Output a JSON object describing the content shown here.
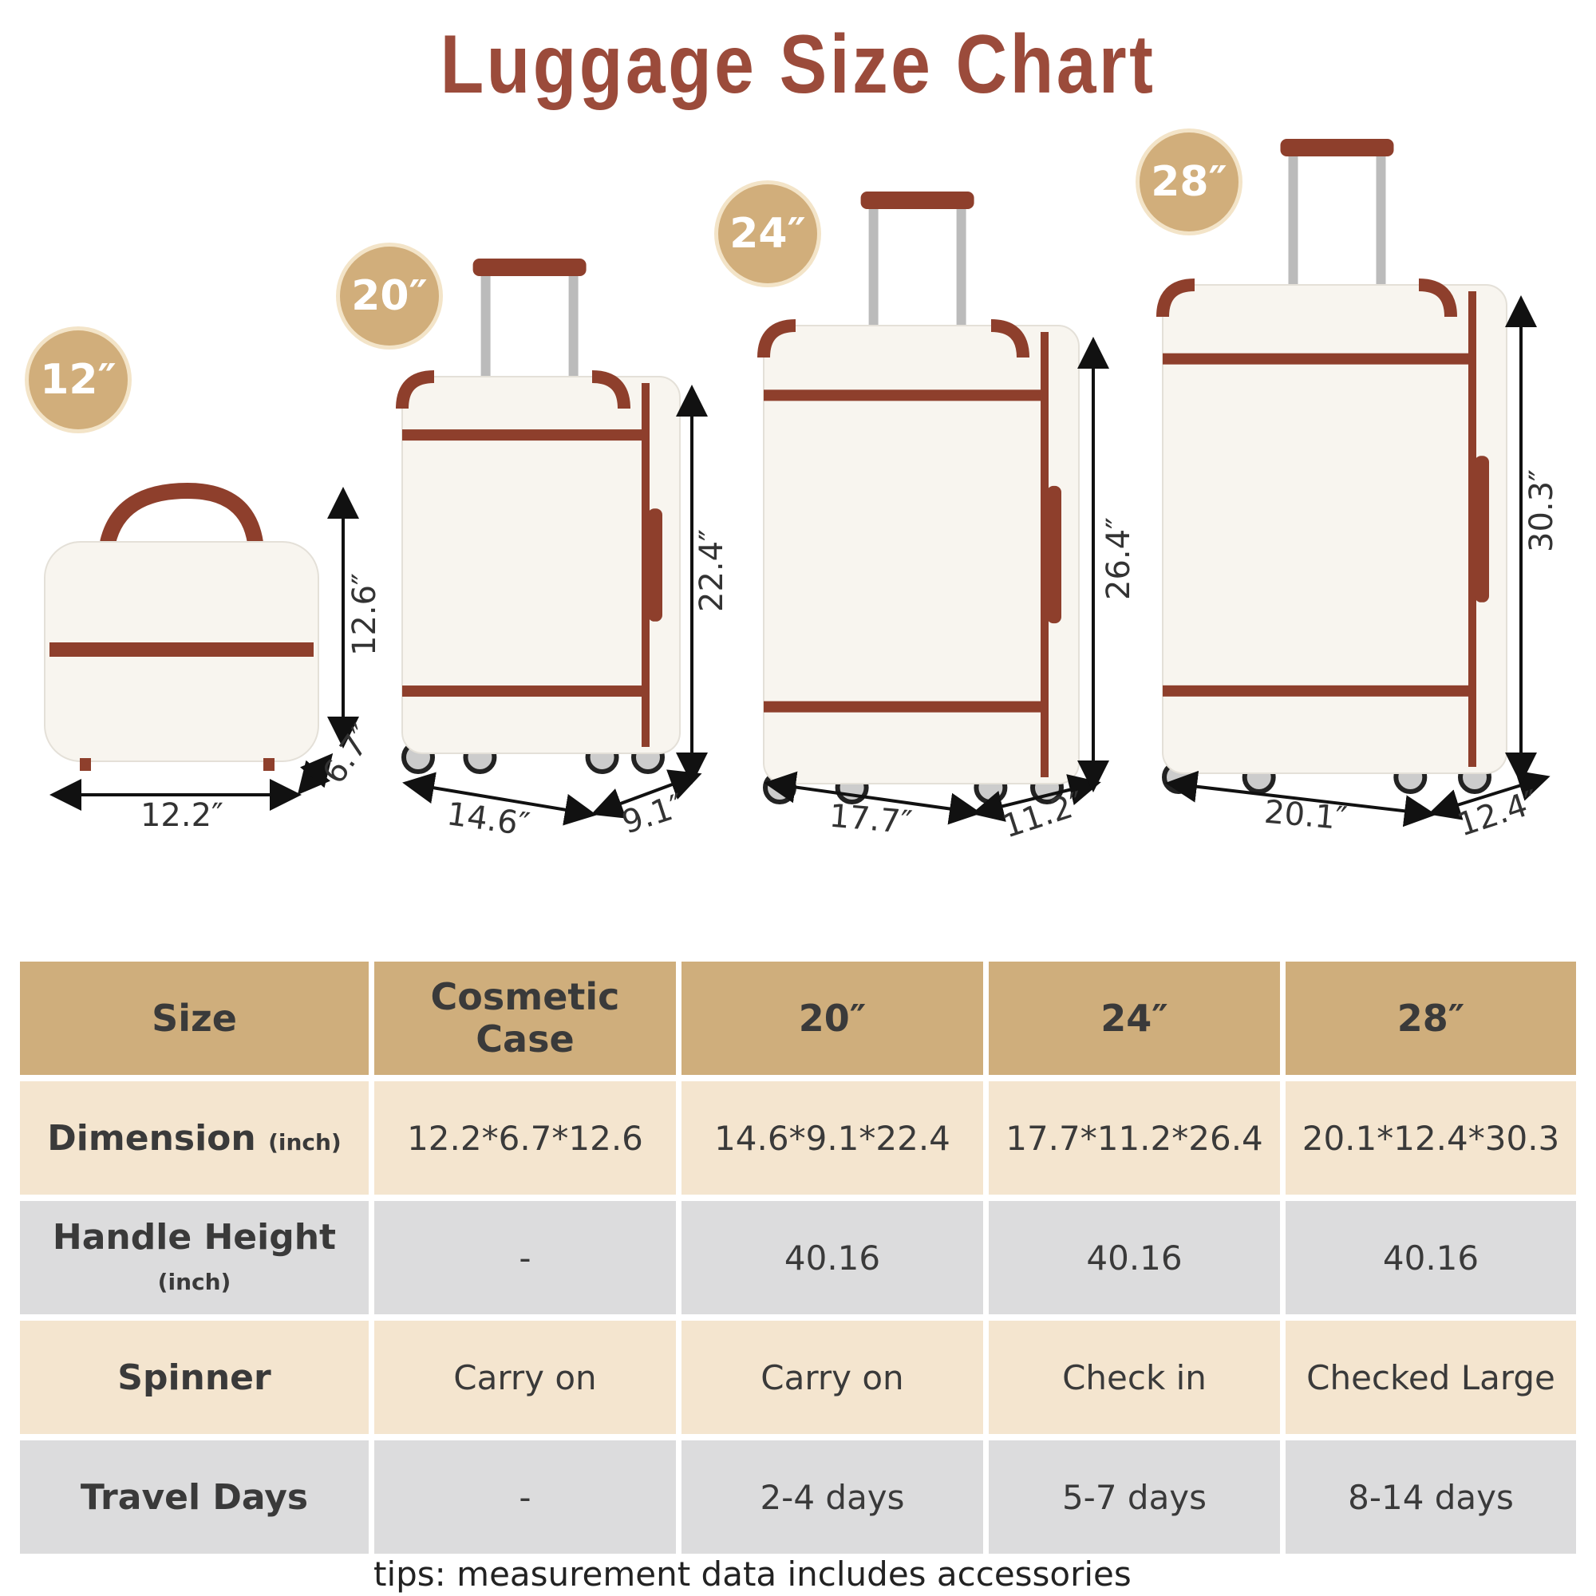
{
  "title": "Luggage Size Chart",
  "badges": [
    "12″",
    "20″",
    "24″",
    "28″"
  ],
  "dimension_labels": {
    "cosmetic": {
      "width": "12.2″",
      "depth": "6.7″",
      "height": "12.6″"
    },
    "s20": {
      "width": "14.6″",
      "depth": "9.1″",
      "height": "22.4″"
    },
    "s24": {
      "width": "17.7″",
      "depth": "11.2″",
      "height": "26.4″"
    },
    "s28": {
      "width": "20.1″",
      "depth": "12.4″",
      "height": "30.3″"
    }
  },
  "table": {
    "header": [
      "Size",
      "Cosmetic Case",
      "20″",
      "24″",
      "28″"
    ],
    "rows": [
      {
        "label": "Dimension",
        "unit": "(inch)",
        "cells": [
          "12.2*6.7*12.6",
          "14.6*9.1*22.4",
          "17.7*11.2*26.4",
          "20.1*12.4*30.3"
        ]
      },
      {
        "label": "Handle Height",
        "unit": "(inch)",
        "cells": [
          "-",
          "40.16",
          "40.16",
          "40.16"
        ]
      },
      {
        "label": "Spinner",
        "unit": "",
        "cells": [
          "Carry on",
          "Carry on",
          "Check in",
          "Checked Large"
        ]
      },
      {
        "label": "Travel Days",
        "unit": "",
        "cells": [
          "-",
          "2-4 days",
          "5-7 days",
          "8-14 days"
        ]
      }
    ]
  },
  "tips": "tips: measurement data includes accessories",
  "colors": {
    "title": "#9b4b3b",
    "badge": "#d1ae7b",
    "header": "#cfae7c",
    "cream_row": "#f4e5cf",
    "grey_row": "#dcdcdd",
    "leather": "#8e3f2c",
    "shell": "#f8f5ef"
  }
}
